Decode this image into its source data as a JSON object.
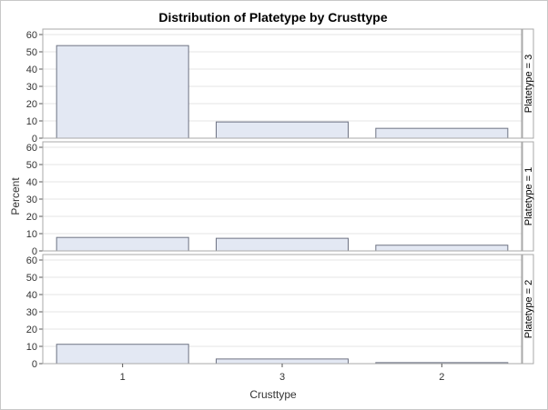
{
  "chart_data": {
    "type": "bar",
    "title": "Distribution of Platetype by Crusttype",
    "xlabel": "Crusttype",
    "ylabel": "Percent",
    "categories": [
      "1",
      "3",
      "2"
    ],
    "ylim": [
      0,
      60
    ],
    "yticks": [
      0,
      10,
      20,
      30,
      40,
      50,
      60
    ],
    "grid": true,
    "panels": [
      {
        "label": "Platetype = 3",
        "values": [
          53.6,
          9.4,
          5.7
        ]
      },
      {
        "label": "Platetype = 1",
        "values": [
          7.8,
          7.3,
          3.3
        ]
      },
      {
        "label": "Platetype = 2",
        "values": [
          11.2,
          2.7,
          0.6
        ]
      }
    ],
    "colors": {
      "bar_fill": "#e3e8f3",
      "bar_stroke": "#6e7383",
      "grid": "#e6e6e6",
      "panel_border": "#a8a8a8",
      "text": "#333333"
    }
  }
}
